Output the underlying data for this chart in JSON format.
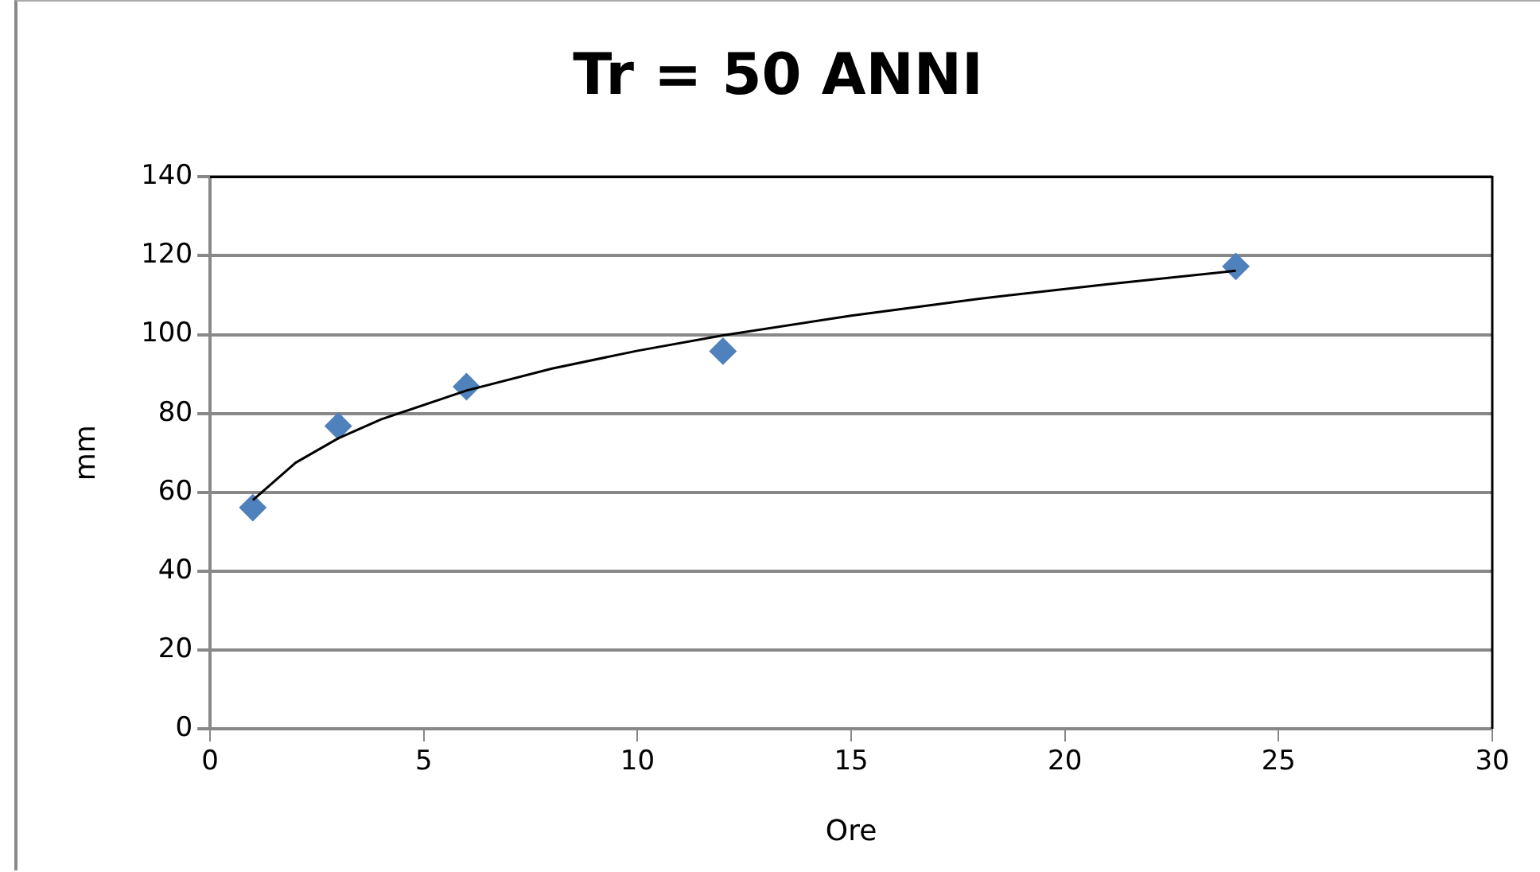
{
  "chart_data": {
    "type": "scatter",
    "title": "Tr = 50 ANNI",
    "xlabel": "Ore",
    "ylabel": "mm",
    "xlim": [
      0,
      30
    ],
    "xticks": [
      0,
      5,
      10,
      15,
      20,
      25,
      30
    ],
    "ylim": [
      0,
      140
    ],
    "yticks": [
      0,
      20,
      40,
      60,
      80,
      100,
      120,
      140
    ],
    "grid": "y",
    "legend": false,
    "marker": "diamond",
    "series": [
      {
        "color": "#4f81bd",
        "x": [
          1,
          3,
          6,
          12,
          24
        ],
        "values": [
          56.1,
          76.8,
          86.8,
          95.8,
          117.3
        ]
      },
      {
        "type": "line",
        "color": "#000000",
        "marker": "none",
        "line_style": "solid",
        "x": [
          1,
          2,
          3,
          4,
          6,
          8,
          10,
          12,
          15,
          18,
          21,
          24
        ],
        "values": [
          58,
          67.5,
          73.7,
          78.5,
          85.8,
          91.4,
          95.9,
          99.8,
          104.8,
          109.1,
          112.8,
          116.2
        ]
      }
    ]
  }
}
